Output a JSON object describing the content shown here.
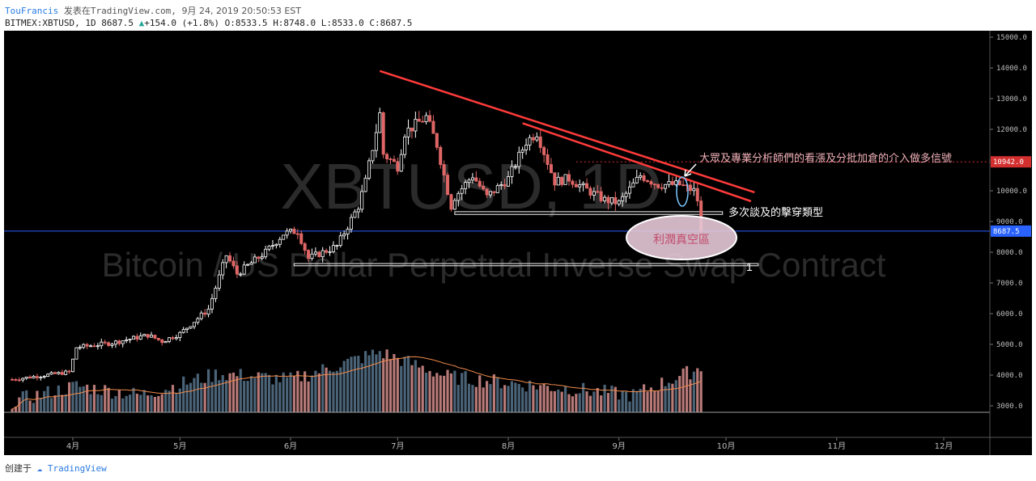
{
  "header": {
    "author": "TouFrancis",
    "published_prefix": "发表在",
    "site": "TradingView.com",
    "date": "9月 24, 2019 20:50:53 EST",
    "symbol": "BITMEX:XBTUSD",
    "interval": "1D",
    "last": "8687.5",
    "change": "+154.0",
    "change_pct": "(+1.8%)",
    "open": "O:8533.5",
    "high": "H:8748.0",
    "low": "L:8533.0",
    "close": "C:8687.5"
  },
  "footer": {
    "created_prefix": "创建于",
    "brand": "TradingView"
  },
  "colors": {
    "background": "#000000",
    "up": "#ffffff",
    "down": "#e06666",
    "trendline": "#ff3b3b",
    "support": "#d0d0d0",
    "current_price": "#2962ff",
    "volume_up": "#4b6377",
    "volume_down": "#b77a78",
    "volume_ma": "#f08a4b",
    "annotation_text": "#f0b0b8"
  },
  "chart_data": {
    "type": "candlestick",
    "watermark_symbol": "XBTUSD, 1D",
    "watermark_name": "Bitcoin / US Dollar Perpetual Inverse Swap Contract",
    "x_tick_labels": [
      "4月",
      "5月",
      "6月",
      "7月",
      "8月",
      "9月",
      "10月",
      "11月",
      "12月"
    ],
    "y_tick_labels": [
      "3000.0",
      "4000.0",
      "5000.0",
      "6000.0",
      "7000.0",
      "8000.0",
      "9000.0",
      "10000.0",
      "11000.0",
      "12000.0",
      "13000.0",
      "14000.0",
      "15000.0"
    ],
    "ylim": [
      2750,
      15250
    ],
    "current_price_label": "8687.5",
    "marked_level_label": "10942.0",
    "close_anchors": [
      [
        "2019-03-15",
        3860
      ],
      [
        "2019-03-31",
        4100
      ],
      [
        "2019-04-02",
        4900
      ],
      [
        "2019-04-12",
        5050
      ],
      [
        "2019-04-22",
        5300
      ],
      [
        "2019-04-26",
        5100
      ],
      [
        "2019-05-01",
        5350
      ],
      [
        "2019-05-09",
        6150
      ],
      [
        "2019-05-14",
        7900
      ],
      [
        "2019-05-17",
        7300
      ],
      [
        "2019-05-25",
        8000
      ],
      [
        "2019-05-30",
        8600
      ],
      [
        "2019-06-03",
        8700
      ],
      [
        "2019-06-06",
        7800
      ],
      [
        "2019-06-14",
        8200
      ],
      [
        "2019-06-20",
        9500
      ],
      [
        "2019-06-22",
        10300
      ],
      [
        "2019-06-26",
        12500
      ],
      [
        "2019-06-27",
        11200
      ],
      [
        "2019-07-01",
        10800
      ],
      [
        "2019-07-03",
        11900
      ],
      [
        "2019-07-09",
        12400
      ],
      [
        "2019-07-12",
        11500
      ],
      [
        "2019-07-16",
        9500
      ],
      [
        "2019-07-17",
        9800
      ],
      [
        "2019-07-22",
        10500
      ],
      [
        "2019-07-26",
        9800
      ],
      [
        "2019-08-01",
        10400
      ],
      [
        "2019-08-06",
        11600
      ],
      [
        "2019-08-09",
        11900
      ],
      [
        "2019-08-14",
        10300
      ],
      [
        "2019-08-18",
        10400
      ],
      [
        "2019-08-22",
        10100
      ],
      [
        "2019-08-28",
        9700
      ],
      [
        "2019-09-01",
        9600
      ],
      [
        "2019-09-07",
        10500
      ],
      [
        "2019-09-12",
        10200
      ],
      [
        "2019-09-18",
        10200
      ],
      [
        "2019-09-22",
        10000
      ],
      [
        "2019-09-23",
        9700
      ],
      [
        "2019-09-24",
        8687.5
      ]
    ],
    "volume_anchors": [
      [
        "2019-03-15",
        3100
      ],
      [
        "2019-04-02",
        3600
      ],
      [
        "2019-04-20",
        3300
      ],
      [
        "2019-05-12",
        4000
      ],
      [
        "2019-06-01",
        3800
      ],
      [
        "2019-06-26",
        4700
      ],
      [
        "2019-07-15",
        3900
      ],
      [
        "2019-08-10",
        3600
      ],
      [
        "2019-09-05",
        3300
      ],
      [
        "2019-09-24",
        4200
      ]
    ],
    "trendlines": [
      {
        "name": "upper",
        "x1": "2019-06-26",
        "y1": 13900,
        "x2": "2019-10-09",
        "y2": 9950
      },
      {
        "name": "lower",
        "x1": "2019-08-05",
        "y1": 12200,
        "x2": "2019-10-08",
        "y2": 9660
      }
    ],
    "support_boxes": [
      {
        "x1": "2019-07-17",
        "x2": "2019-09-30",
        "y1": 9230,
        "y2": 9320
      },
      {
        "x1": "2019-06-02",
        "x2": "2019-10-10",
        "y1": 7560,
        "y2": 7630
      }
    ],
    "support_box_label": "1",
    "dotted_level": {
      "y": 10942,
      "from": "2019-08-20"
    },
    "annotations": [
      {
        "text": "大眾及專業分析師們的看漲及分批加倉的介入做多信號"
      },
      {
        "text": "多次談及的擊穿類型"
      },
      {
        "text": "利潤真空區"
      }
    ]
  }
}
